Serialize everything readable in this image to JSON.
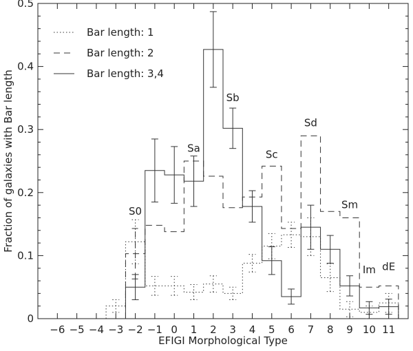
{
  "chart_data": {
    "type": "step",
    "xlabel": "EFIGI Morphological Type",
    "ylabel": "Fraction of galaxies with Bar length",
    "xlim": [
      -7,
      12
    ],
    "ylim": [
      0,
      0.5
    ],
    "x_ticks": [
      -6,
      -5,
      -4,
      -3,
      -2,
      -1,
      0,
      1,
      2,
      3,
      4,
      5,
      6,
      7,
      8,
      9,
      10,
      11
    ],
    "x_tick_labels": [
      "−6",
      "−5",
      "−4",
      "−3",
      "−2",
      "−1",
      "0",
      "1",
      "2",
      "3",
      "4",
      "5",
      "6",
      "7",
      "8",
      "9",
      "10",
      "11"
    ],
    "y_ticks": [
      0,
      0.1,
      0.2,
      0.3,
      0.4,
      0.5
    ],
    "y_tick_labels": [
      "0",
      "0.1",
      "0.2",
      "0.3",
      "0.4",
      "0.5"
    ],
    "series": [
      {
        "name": "Bar length: 1",
        "style": "dotted",
        "x": [
          -3,
          -2,
          -1,
          0,
          1,
          2,
          3,
          4,
          5,
          6,
          7,
          8,
          9,
          10,
          11
        ],
        "values": [
          0.02,
          0.122,
          0.052,
          0.052,
          0.042,
          0.055,
          0.04,
          0.088,
          0.115,
          0.133,
          0.13,
          0.065,
          0.015,
          0.01,
          0.025
        ],
        "errors": [
          0.01,
          0.035,
          0.015,
          0.015,
          0.012,
          0.013,
          0.01,
          0.014,
          0.02,
          0.02,
          0.03,
          0.022,
          0.012,
          0.01,
          0.015
        ]
      },
      {
        "name": "Bar length: 2",
        "style": "dashed",
        "x": [
          -2,
          -1,
          0,
          1,
          2,
          3,
          4,
          5,
          6,
          7,
          8,
          9,
          10,
          11
        ],
        "values": [
          0.103,
          0.148,
          0.138,
          0.25,
          0.226,
          0.176,
          0.193,
          0.242,
          0.143,
          0.29,
          0.17,
          0.16,
          0.05,
          0.052
        ],
        "errors": [
          0.04,
          0,
          0,
          0,
          0,
          0,
          0,
          0,
          0,
          0,
          0,
          0,
          0,
          0
        ]
      },
      {
        "name": "Bar length: 3,4",
        "style": "solid",
        "x": [
          -2,
          -1,
          0,
          1,
          2,
          3,
          4,
          5,
          6,
          7,
          8,
          9,
          10,
          11
        ],
        "values": [
          0.05,
          0.235,
          0.228,
          0.218,
          0.427,
          0.302,
          0.178,
          0.092,
          0.035,
          0.145,
          0.11,
          0.052,
          0.017,
          0.019
        ],
        "errors": [
          0.02,
          0.05,
          0.045,
          0.04,
          0.06,
          0.032,
          0.025,
          0.022,
          0.012,
          0.035,
          0.022,
          0.016,
          0.01,
          0.012
        ]
      }
    ],
    "annotations": [
      {
        "text": "S0",
        "x": -2,
        "y": 0.165
      },
      {
        "text": "Sa",
        "x": 1,
        "y": 0.265
      },
      {
        "text": "Sb",
        "x": 3,
        "y": 0.345
      },
      {
        "text": "Sc",
        "x": 5,
        "y": 0.255
      },
      {
        "text": "Sd",
        "x": 7,
        "y": 0.305
      },
      {
        "text": "Sm",
        "x": 9,
        "y": 0.175
      },
      {
        "text": "Im",
        "x": 10,
        "y": 0.072
      },
      {
        "text": "dE",
        "x": 11,
        "y": 0.077
      }
    ],
    "legend_position": "top-left"
  }
}
